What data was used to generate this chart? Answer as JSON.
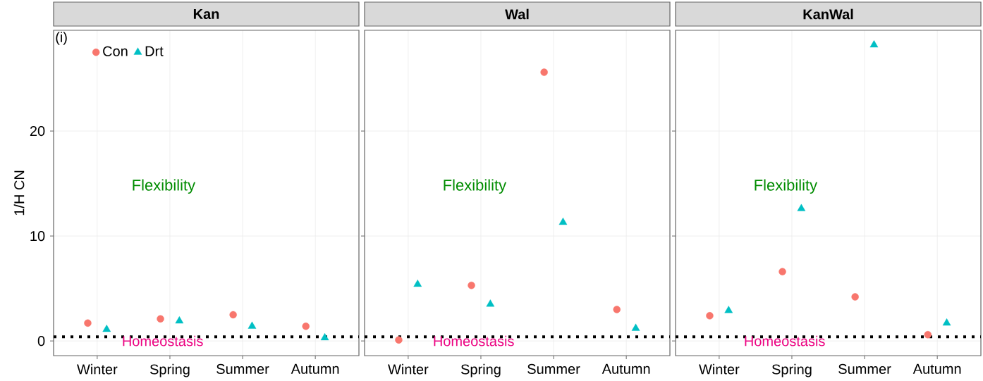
{
  "chart_data": [
    {
      "type": "scatter",
      "title": "Kan",
      "ylabel": "1/H CN",
      "categories": [
        "Winter",
        "Spring",
        "Summer",
        "Autumn"
      ],
      "series": [
        {
          "name": "Con",
          "color": "#f8766d",
          "marker": "circle",
          "values": [
            1.7,
            2.1,
            2.5,
            1.4
          ]
        },
        {
          "name": "Drt",
          "color": "#00bfc4",
          "marker": "triangle",
          "values": [
            1.1,
            1.9,
            1.4,
            0.3
          ]
        }
      ],
      "ylim": [
        -1.4,
        29.6
      ],
      "yticks": [
        0,
        10,
        20
      ],
      "grid": true,
      "legend": "top left",
      "ref_lines": [
        {
          "axis": "y",
          "value": 0.4,
          "label": "Homeostasis",
          "color": "#000000",
          "line_style": "dotted"
        }
      ],
      "annotations": [
        "(i)",
        "Flexibility"
      ]
    },
    {
      "type": "scatter",
      "title": "Wal",
      "categories": [
        "Winter",
        "Spring",
        "Summer",
        "Autumn"
      ],
      "series": [
        {
          "color": "#f8766d",
          "marker": "circle",
          "values": [
            0.1,
            5.3,
            25.6,
            3.0
          ]
        },
        {
          "color": "#00bfc4",
          "marker": "triangle",
          "values": [
            5.4,
            3.5,
            11.3,
            1.2
          ]
        }
      ],
      "ylim": [
        -1.4,
        29.6
      ],
      "yticks": [
        0,
        10,
        20
      ],
      "grid": true,
      "legend": false,
      "tick_labels": "x",
      "ref_lines": [
        {
          "axis": "y",
          "value": 0.4,
          "label": "Homeostasis",
          "color": "#000000",
          "line_style": "dotted"
        }
      ],
      "annotations": [
        "Flexibility"
      ]
    },
    {
      "type": "scatter",
      "title": "KanWal",
      "categories": [
        "Winter",
        "Spring",
        "Summer",
        "Autumn"
      ],
      "series": [
        {
          "color": "#f8766d",
          "marker": "circle",
          "values": [
            2.4,
            6.6,
            4.2,
            0.6
          ]
        },
        {
          "color": "#00bfc4",
          "marker": "triangle",
          "values": [
            2.9,
            12.6,
            28.2,
            1.7
          ]
        }
      ],
      "ylim": [
        -1.4,
        29.6
      ],
      "yticks": [
        0,
        10,
        20
      ],
      "grid": true,
      "legend": false,
      "tick_labels": "x",
      "ref_lines": [
        {
          "axis": "y",
          "value": 0.4,
          "label": "Homeostasis",
          "color": "#000000",
          "line_style": "dotted"
        }
      ],
      "annotations": [
        "Flexibility"
      ]
    }
  ]
}
